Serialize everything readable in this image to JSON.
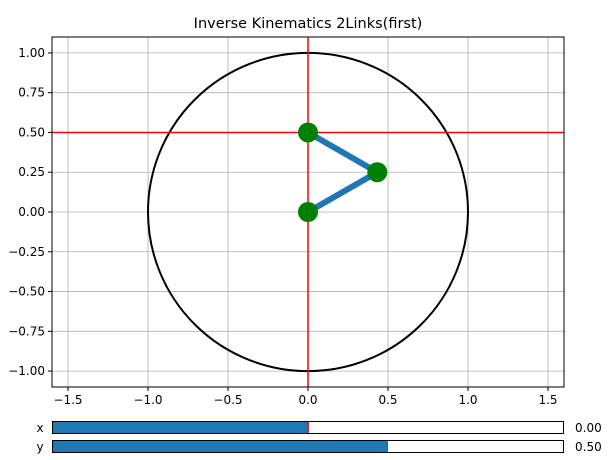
{
  "chart_data": {
    "type": "scatter",
    "title": "Inverse Kinematics 2Links(first)",
    "xlim": [
      -1.6,
      1.6
    ],
    "ylim": [
      -1.1,
      1.1
    ],
    "grid": true,
    "x_ticks": [
      -1.5,
      -1.0,
      -0.5,
      0.0,
      0.5,
      1.0,
      1.5
    ],
    "x_tick_labels": [
      "−1.5",
      "−1.0",
      "−0.5",
      "0.0",
      "0.5",
      "1.0",
      "1.5"
    ],
    "y_ticks": [
      -1.0,
      -0.75,
      -0.5,
      -0.25,
      0.0,
      0.25,
      0.5,
      0.75,
      1.0
    ],
    "y_tick_labels": [
      "−1.00",
      "−0.75",
      "−0.50",
      "−0.25",
      "0.00",
      "0.25",
      "0.50",
      "0.75",
      "1.00"
    ],
    "circle": {
      "center": [
        0,
        0
      ],
      "radius": 1.0,
      "color": "#000000"
    },
    "target_lines": {
      "x": 0.0,
      "y": 0.5,
      "color": "#ff0000"
    },
    "links": {
      "color": "#1f77b4",
      "points": [
        [
          0.0,
          0.0
        ],
        [
          0.433,
          0.25
        ],
        [
          0.0,
          0.5
        ]
      ]
    },
    "joints": {
      "color": "#008000",
      "points": [
        [
          0.0,
          0.0
        ],
        [
          0.433,
          0.25
        ],
        [
          0.0,
          0.5
        ]
      ]
    }
  },
  "sliders": [
    {
      "label": "x",
      "min": -1.6,
      "max": 1.6,
      "value": 0.0,
      "value_text": "0.00"
    },
    {
      "label": "y",
      "min": -1.6,
      "max": 1.6,
      "value": 0.5,
      "value_text": "0.50"
    }
  ]
}
